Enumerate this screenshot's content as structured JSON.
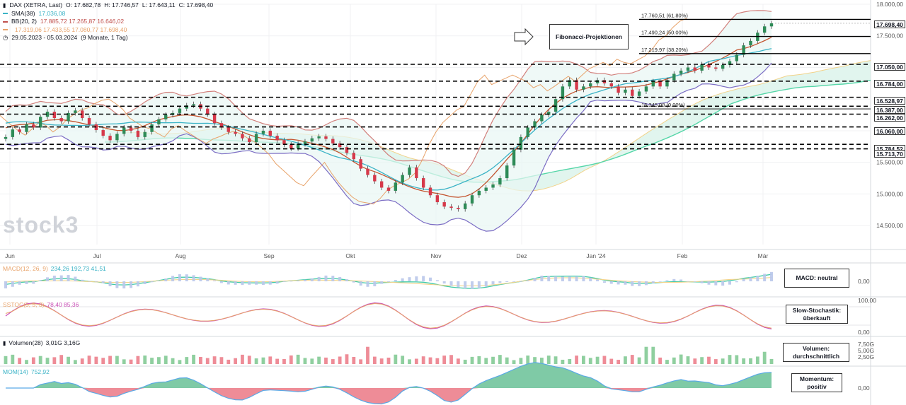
{
  "chart_data": {
    "type": "candlestick",
    "title": "DAX (XETRA, Last)",
    "ohlc": {
      "o": "17.682,78",
      "h": "17.746,57",
      "l": "17.643,11",
      "c": "17.698,40"
    },
    "period": "29.05.2023 - 05.03.2024",
    "period_note": "(9 Monate, 1 Tag)",
    "watermark": "stock3",
    "indicators": [
      {
        "label": "SMA(38)",
        "values": "17.036,08",
        "color": "#3bb3c6"
      },
      {
        "label": "BB(20, 2)",
        "values": "17.885,72  17.265,87  16.646,02",
        "color": "#c0504d"
      },
      {
        "label": "",
        "values": "17.319,06  17.433,55  17.080,77  17.698,40",
        "color": "#e8a36a"
      }
    ],
    "x_ticks": [
      "Jun",
      "Jul",
      "Aug",
      "Sep",
      "Okt",
      "Nov",
      "Dez",
      "Jan '24",
      "Feb",
      "Mär"
    ],
    "y_ticks": [
      "18.000,00",
      "17.500,00",
      "17.000,00",
      "16.500,00",
      "16.000,00",
      "15.500,00",
      "15.000,00",
      "14.500,00"
    ],
    "ylim": [
      14200,
      18000
    ],
    "current_price": "17.698,40",
    "levels": [
      17698.4,
      17050,
      16784,
      16528.97,
      16387,
      16262,
      16060,
      15784.52,
      15713.7
    ],
    "level_labels": [
      "17.698,40",
      "17.050,00",
      "16.784,00",
      "16.528,97",
      "16.387,00",
      "16.262,00",
      "16.060,00",
      "15.784,52",
      "15.713,70"
    ],
    "fibonacci": {
      "label": "Fibonacci-Projektionen",
      "levels": [
        {
          "value": 17760.51,
          "text": "17.760,51 (61.80%)"
        },
        {
          "value": 17490.24,
          "text": "17.490,24 (50.00%)"
        },
        {
          "value": 17219.97,
          "text": "17.219,97 (38.20%)"
        },
        {
          "value": 16345.08,
          "text": "16.345,08 (0.00%)"
        }
      ]
    },
    "close_series": [
      15900,
      16020,
      15980,
      16100,
      16050,
      16220,
      16300,
      16200,
      16150,
      16280,
      16320,
      16200,
      16100,
      16010,
      15920,
      15850,
      15950,
      16050,
      16000,
      15900,
      15980,
      16100,
      16180,
      16250,
      16280,
      16350,
      16400,
      16420,
      16350,
      16260,
      16120,
      16050,
      15980,
      15950,
      15880,
      15820,
      15950,
      16000,
      15920,
      15850,
      15780,
      15720,
      15790,
      15830,
      15880,
      15910,
      15870,
      15800,
      15740,
      15650,
      15550,
      15400,
      15300,
      15200,
      15100,
      15050,
      15180,
      15300,
      15420,
      15250,
      15100,
      14980,
      14870,
      14800,
      14780,
      14760,
      14850,
      14980,
      15050,
      15100,
      15150,
      15250,
      15450,
      15700,
      15900,
      16050,
      16150,
      16250,
      16300,
      16500,
      16700,
      16800,
      16650,
      16700,
      16750,
      16800,
      16750,
      16700,
      16600,
      16650,
      16550,
      16620,
      16700,
      16780,
      16700,
      16800,
      16900,
      16950,
      17000,
      16950,
      17050,
      17000,
      16980,
      17040,
      17100,
      17200,
      17350,
      17420,
      17550,
      17650,
      17698
    ],
    "panels": [
      {
        "label": "MACD(12, 26, 9)",
        "values": "234,26  192,73  41,51",
        "note": "MACD: neutral",
        "tick": "0,00"
      },
      {
        "label": "SSTOC(5, 5, 3)",
        "values": "78,40  85,36",
        "note": "Slow-Stochastik: überkauft",
        "ticks": [
          "100,00",
          "0,00"
        ]
      },
      {
        "label": "Volumen(28)",
        "values": "3,01G  3,16G",
        "note": "Volumen: durchschnittlich",
        "ticks": [
          "7,50G",
          "5,00G",
          "2,50G"
        ]
      },
      {
        "label": "MOM(14)",
        "values": "752,92",
        "note": "Momentum: positiv",
        "tick": "0,00"
      }
    ]
  }
}
